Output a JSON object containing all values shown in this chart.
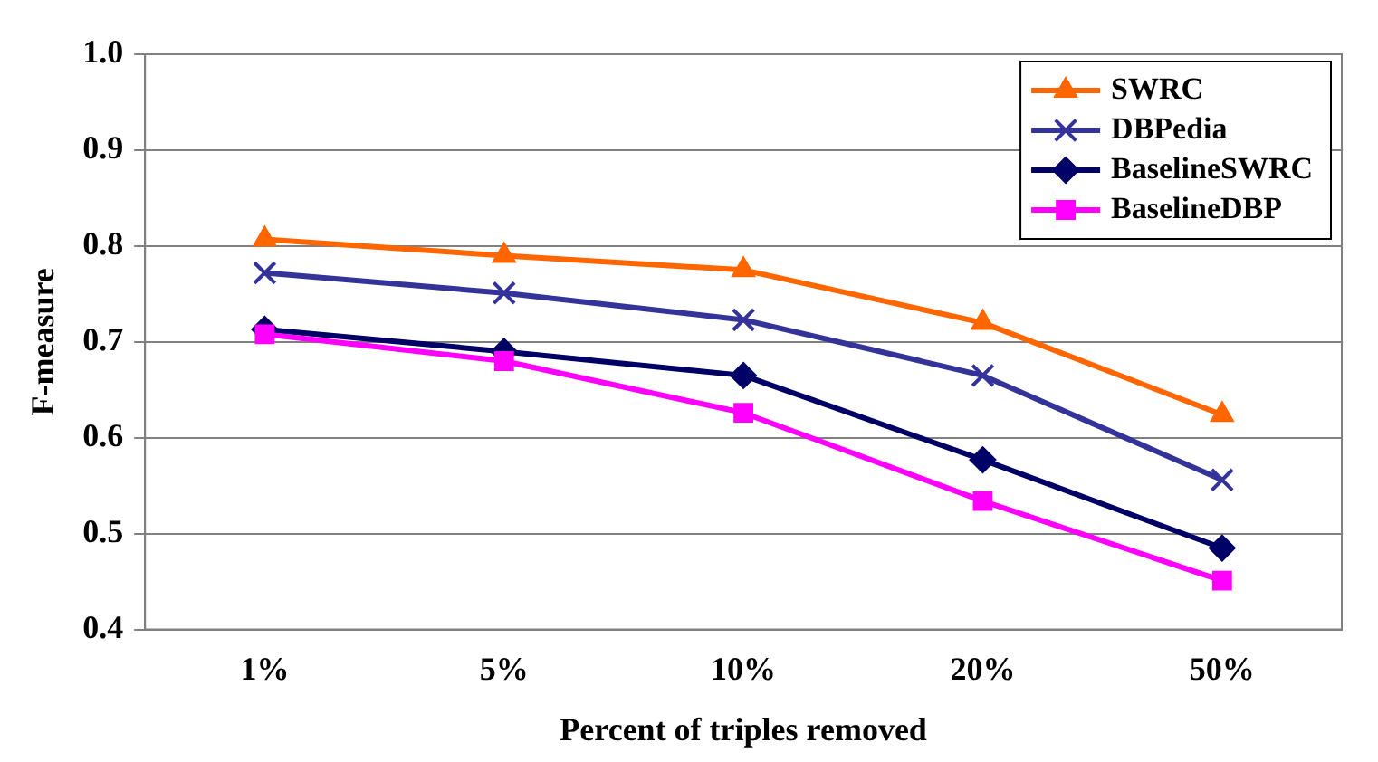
{
  "chart_data": {
    "type": "line",
    "xlabel": "Percent of triples removed",
    "ylabel": "F-measure",
    "categories": [
      "1%",
      "5%",
      "10%",
      "20%",
      "50%"
    ],
    "series": [
      {
        "name": "SWRC",
        "color": "#ff6600",
        "marker": "triangle",
        "values": [
          0.807,
          0.79,
          0.775,
          0.72,
          0.624
        ]
      },
      {
        "name": "DBPedia",
        "color": "#333399",
        "marker": "cross",
        "values": [
          0.772,
          0.751,
          0.723,
          0.665,
          0.556
        ]
      },
      {
        "name": "BaselineSWRC",
        "color": "#000066",
        "marker": "diamond",
        "values": [
          0.713,
          0.69,
          0.665,
          0.577,
          0.485
        ]
      },
      {
        "name": "BaselineDBP",
        "color": "#ff00ff",
        "marker": "square",
        "values": [
          0.708,
          0.68,
          0.626,
          0.534,
          0.451
        ]
      }
    ],
    "ylim": [
      0.4,
      1.0
    ],
    "yticks": [
      0.4,
      0.5,
      0.6,
      0.7,
      0.8,
      0.9,
      {
        "value": 1.0,
        "label": "1.0"
      }
    ],
    "grid": "y",
    "legend": "top right",
    "line_style": "solid"
  }
}
